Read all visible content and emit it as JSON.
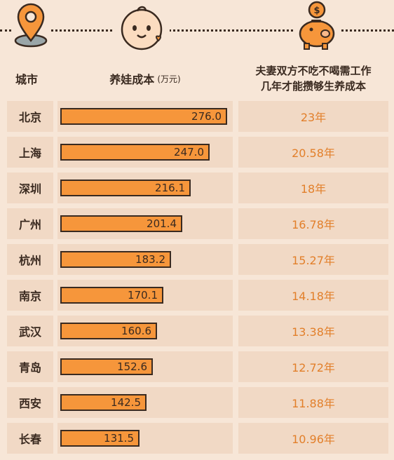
{
  "header": {
    "city": "城市",
    "cost": "养娃成本",
    "cost_unit": "(万元)",
    "years_line1": "夫妻双方不吃不喝需工作",
    "years_line2": "几年才能攒够生养成本"
  },
  "icons": [
    "location-pin-icon",
    "baby-face-icon",
    "piggy-bank-icon"
  ],
  "colors": {
    "bar": "#f6963b",
    "years_text": "#e27f2a",
    "cell": "#f1d9c5",
    "background": "#f7e6d7"
  },
  "chart_data": {
    "type": "bar",
    "orientation": "horizontal",
    "categories": [
      "北京",
      "上海",
      "深圳",
      "广州",
      "杭州",
      "南京",
      "武汉",
      "青岛",
      "西安",
      "长春"
    ],
    "values": [
      276.0,
      247.0,
      216.1,
      201.4,
      183.2,
      170.1,
      160.6,
      152.6,
      142.5,
      131.5
    ],
    "value_labels": [
      "276.0",
      "247.0",
      "216.1",
      "201.4",
      "183.2",
      "170.1",
      "160.6",
      "152.6",
      "142.5",
      "131.5"
    ],
    "years": [
      "23年",
      "20.58年",
      "18年",
      "16.78年",
      "15.27年",
      "14.18年",
      "13.38年",
      "12.72年",
      "11.88年",
      "10.96年"
    ],
    "xlim": [
      0,
      276.0
    ]
  }
}
